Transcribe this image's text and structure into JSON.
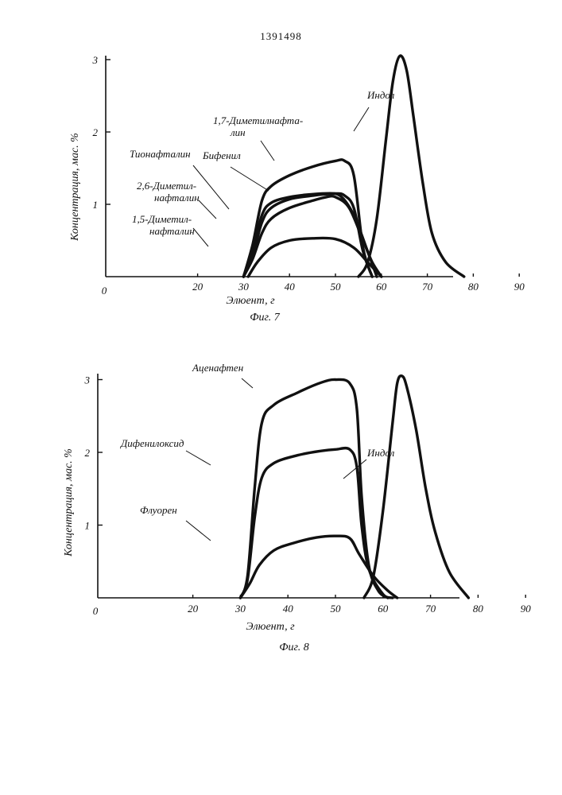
{
  "header": {
    "patent_number": "1391498"
  },
  "chart_data": [
    {
      "type": "line",
      "caption": "Фиг. 7",
      "xlabel": "Элюент, г",
      "ylabel": "Концентрация, мас. %",
      "xlim": [
        0,
        90
      ],
      "ylim": [
        0,
        3
      ],
      "x_ticks": [
        "0",
        "20",
        "30",
        "40",
        "50",
        "60",
        "70",
        "80",
        "90"
      ],
      "y_ticks": [
        "1",
        "2",
        "3"
      ],
      "grid": false,
      "series": [
        {
          "name": "1,7-Диметилнафталин",
          "label_lines": [
            "1,7-Диметилнафта-",
            "лин"
          ],
          "points": [
            [
              30,
              0
            ],
            [
              32,
              0.45
            ],
            [
              34,
              1.05
            ],
            [
              36,
              1.25
            ],
            [
              40,
              1.4
            ],
            [
              45,
              1.52
            ],
            [
              50,
              1.6
            ],
            [
              52,
              1.6
            ],
            [
              54,
              1.4
            ],
            [
              56,
              0.4
            ],
            [
              58,
              0
            ]
          ]
        },
        {
          "name": "Бифенил",
          "label_lines": [
            "Бифенил"
          ],
          "points": [
            [
              30,
              0
            ],
            [
              32,
              0.35
            ],
            [
              34,
              0.85
            ],
            [
              36,
              1.02
            ],
            [
              40,
              1.1
            ],
            [
              45,
              1.14
            ],
            [
              50,
              1.15
            ],
            [
              52,
              1.12
            ],
            [
              54,
              0.95
            ],
            [
              56,
              0.35
            ],
            [
              58,
              0
            ]
          ]
        },
        {
          "name": "Тионафталин",
          "label_lines": [
            "Тионафталин"
          ],
          "points": [
            [
              30,
              0
            ],
            [
              32,
              0.3
            ],
            [
              34,
              0.75
            ],
            [
              36,
              0.95
            ],
            [
              40,
              1.07
            ],
            [
              45,
              1.12
            ],
            [
              48,
              1.14
            ],
            [
              51,
              1.12
            ],
            [
              54,
              0.85
            ],
            [
              57,
              0.35
            ],
            [
              59,
              0
            ]
          ]
        },
        {
          "name": "2,6-Диметилнафталин",
          "label_lines": [
            "2,6-Диметил-",
            "нафталин"
          ],
          "points": [
            [
              30,
              0
            ],
            [
              32,
              0.25
            ],
            [
              34,
              0.6
            ],
            [
              36,
              0.8
            ],
            [
              40,
              0.95
            ],
            [
              45,
              1.05
            ],
            [
              48,
              1.1
            ],
            [
              50,
              1.1
            ],
            [
              53,
              0.95
            ],
            [
              56,
              0.5
            ],
            [
              58,
              0.2
            ],
            [
              60,
              0
            ]
          ]
        },
        {
          "name": "1,5-Диметилнафталин",
          "label_lines": [
            "1,5-Диметил-",
            "нафталин"
          ],
          "points": [
            [
              31,
              0
            ],
            [
              33,
              0.2
            ],
            [
              36,
              0.4
            ],
            [
              40,
              0.5
            ],
            [
              45,
              0.53
            ],
            [
              50,
              0.52
            ],
            [
              54,
              0.4
            ],
            [
              57,
              0.2
            ],
            [
              60,
              0
            ]
          ]
        },
        {
          "name": "Индол",
          "label_lines": [
            "Индол"
          ],
          "points": [
            [
              55,
              0
            ],
            [
              57,
              0.2
            ],
            [
              59,
              0.8
            ],
            [
              61,
              1.9
            ],
            [
              62.5,
              2.7
            ],
            [
              64,
              3.05
            ],
            [
              65.5,
              2.85
            ],
            [
              67,
              2.2
            ],
            [
              69,
              1.3
            ],
            [
              71,
              0.6
            ],
            [
              74,
              0.2
            ],
            [
              78,
              0
            ]
          ]
        }
      ]
    },
    {
      "type": "line",
      "caption": "Фиг. 8",
      "xlabel": "Элюент, г",
      "ylabel": "Концентрация, мас. %",
      "xlim": [
        0,
        90
      ],
      "ylim": [
        0,
        3
      ],
      "x_ticks": [
        "0",
        "20",
        "30",
        "40",
        "50",
        "60",
        "70",
        "80",
        "90"
      ],
      "y_ticks": [
        "1",
        "2",
        "3"
      ],
      "grid": false,
      "series": [
        {
          "name": "Аценафтен",
          "label_lines": [
            "Аценафтен"
          ],
          "points": [
            [
              30,
              0
            ],
            [
              31.5,
              0.3
            ],
            [
              33,
              1.5
            ],
            [
              34.5,
              2.4
            ],
            [
              37,
              2.65
            ],
            [
              42,
              2.82
            ],
            [
              47,
              2.96
            ],
            [
              50,
              3.0
            ],
            [
              53,
              2.95
            ],
            [
              54.5,
              2.6
            ],
            [
              55.5,
              1.4
            ],
            [
              57,
              0.45
            ],
            [
              59,
              0.1
            ],
            [
              61,
              0
            ]
          ]
        },
        {
          "name": "Дифенилоксид",
          "label_lines": [
            "Дифенилоксид"
          ],
          "points": [
            [
              30,
              0
            ],
            [
              31.5,
              0.25
            ],
            [
              33,
              1.1
            ],
            [
              34.5,
              1.65
            ],
            [
              37,
              1.85
            ],
            [
              42,
              1.96
            ],
            [
              47,
              2.02
            ],
            [
              50,
              2.04
            ],
            [
              53,
              2.04
            ],
            [
              54.5,
              1.8
            ],
            [
              55.5,
              1.0
            ],
            [
              57,
              0.4
            ],
            [
              60,
              0.05
            ],
            [
              62,
              0
            ]
          ]
        },
        {
          "name": "Флуорен",
          "label_lines": [
            "Флуорен"
          ],
          "points": [
            [
              30,
              0
            ],
            [
              32,
              0.2
            ],
            [
              34,
              0.45
            ],
            [
              37,
              0.65
            ],
            [
              41,
              0.75
            ],
            [
              46,
              0.83
            ],
            [
              50,
              0.85
            ],
            [
              53,
              0.82
            ],
            [
              55,
              0.6
            ],
            [
              58,
              0.3
            ],
            [
              61,
              0.1
            ],
            [
              63,
              0
            ]
          ]
        },
        {
          "name": "Индол",
          "label_lines": [
            "Индол"
          ],
          "points": [
            [
              56,
              0
            ],
            [
              58,
              0.3
            ],
            [
              60,
              1.2
            ],
            [
              62,
              2.4
            ],
            [
              63,
              2.95
            ],
            [
              64,
              3.05
            ],
            [
              65,
              2.9
            ],
            [
              67,
              2.3
            ],
            [
              69,
              1.5
            ],
            [
              71,
              0.9
            ],
            [
              74,
              0.35
            ],
            [
              78,
              0
            ]
          ]
        }
      ]
    }
  ]
}
